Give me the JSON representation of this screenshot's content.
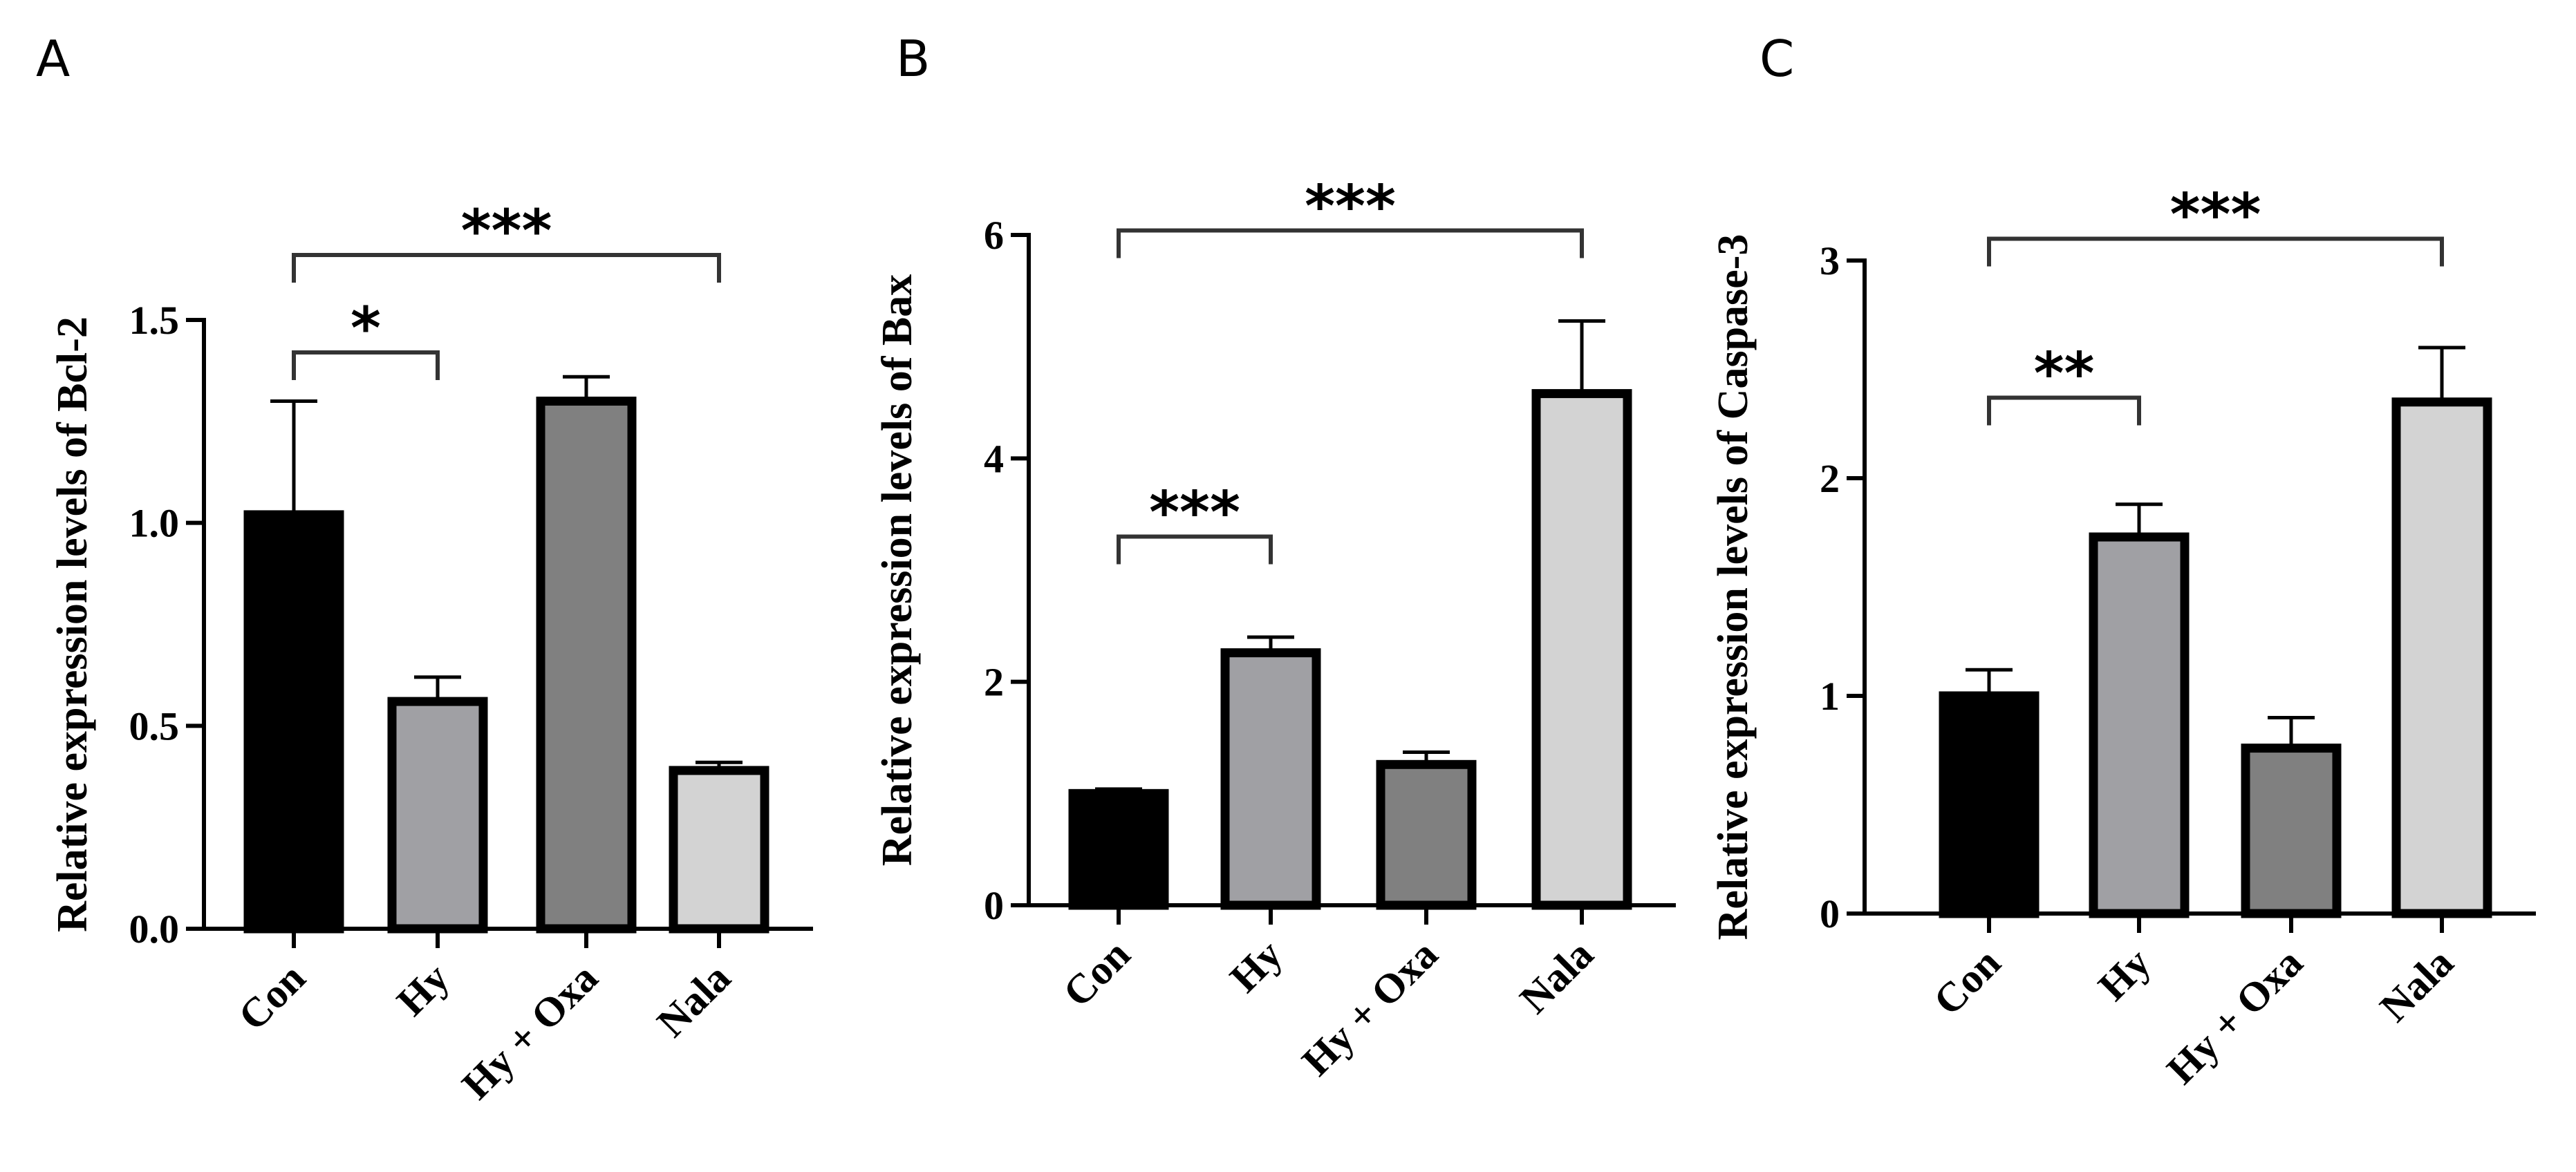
{
  "chart_data": [
    {
      "panel": "A",
      "type": "bar",
      "ylabel": "Relative expression levels of Bcl-2",
      "categories": [
        "Con",
        "Hy",
        "Hy + Oxa",
        "Nala"
      ],
      "values": [
        1.02,
        0.56,
        1.3,
        0.39
      ],
      "errors": [
        0.28,
        0.06,
        0.06,
        0.02
      ],
      "ylim": [
        0,
        1.5
      ],
      "yticks": [
        0,
        0.5,
        1.0,
        1.5
      ],
      "ytick_labels": [
        "0.0",
        "0.5",
        "1.0",
        "1.5"
      ],
      "bar_colors": [
        "#000000",
        "#a0a0a4",
        "#808080",
        "#d3d3d3"
      ],
      "significance": [
        {
          "from": 0,
          "to": 1,
          "label": "*",
          "level": 1.42
        },
        {
          "from": 0,
          "to": 3,
          "label": "***",
          "level": 1.66
        }
      ]
    },
    {
      "panel": "B",
      "type": "bar",
      "ylabel": "Relative expression levels of Bax",
      "categories": [
        "Con",
        "Hy",
        "Hy + Oxa",
        "Nala"
      ],
      "values": [
        1.0,
        2.26,
        1.26,
        4.58
      ],
      "errors": [
        0.04,
        0.14,
        0.11,
        0.65
      ],
      "ylim": [
        0,
        6
      ],
      "yticks": [
        0,
        2,
        4,
        6
      ],
      "ytick_labels": [
        "0",
        "2",
        "4",
        "6"
      ],
      "bar_colors": [
        "#000000",
        "#a0a0a4",
        "#808080",
        "#d3d3d3"
      ],
      "significance": [
        {
          "from": 0,
          "to": 1,
          "label": "***",
          "level": 3.3
        },
        {
          "from": 0,
          "to": 3,
          "label": "***",
          "level": 6.04
        }
      ]
    },
    {
      "panel": "C",
      "type": "bar",
      "ylabel": "Relative expression levels of Caspase-3",
      "categories": [
        "Con",
        "Hy",
        "Hy + Oxa",
        "Nala"
      ],
      "values": [
        1.0,
        1.73,
        0.76,
        2.35
      ],
      "errors": [
        0.12,
        0.15,
        0.14,
        0.25
      ],
      "ylim": [
        0,
        3
      ],
      "yticks": [
        0,
        1,
        2,
        3
      ],
      "ytick_labels": [
        "0",
        "1",
        "2",
        "3"
      ],
      "bar_colors": [
        "#000000",
        "#a0a0a4",
        "#808080",
        "#d3d3d3"
      ],
      "significance": [
        {
          "from": 0,
          "to": 1,
          "label": "**",
          "level": 2.37
        },
        {
          "from": 0,
          "to": 3,
          "label": "***",
          "level": 3.1
        }
      ]
    }
  ]
}
